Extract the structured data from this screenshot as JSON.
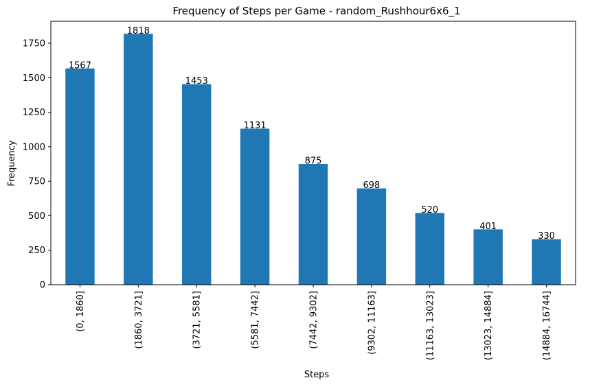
{
  "chart_data": {
    "type": "bar",
    "title": "Frequency of Steps per Game - random_Rushhour6x6_1",
    "xlabel": "Steps",
    "ylabel": "Frequency",
    "categories": [
      "(0, 1860]",
      "(1860, 3721]",
      "(3721, 5581]",
      "(5581, 7442]",
      "(7442, 9302]",
      "(9302, 11163]",
      "(11163, 13023]",
      "(13023, 14884]",
      "(14884, 16744]"
    ],
    "values": [
      1567,
      1818,
      1453,
      1131,
      875,
      698,
      520,
      401,
      330
    ],
    "data_labels": [
      "1567",
      "1818",
      "1453",
      "1131",
      "875",
      "698",
      "520",
      "401",
      "330"
    ],
    "yticks": [
      0,
      250,
      500,
      750,
      1000,
      1250,
      1500,
      1750
    ],
    "ytick_labels": [
      "0",
      "250",
      "500",
      "750",
      "1000",
      "1250",
      "1500",
      "1750"
    ],
    "ylim": [
      0,
      1909
    ],
    "grid": false,
    "legend": "none",
    "bar_color": "#1f77b4"
  }
}
